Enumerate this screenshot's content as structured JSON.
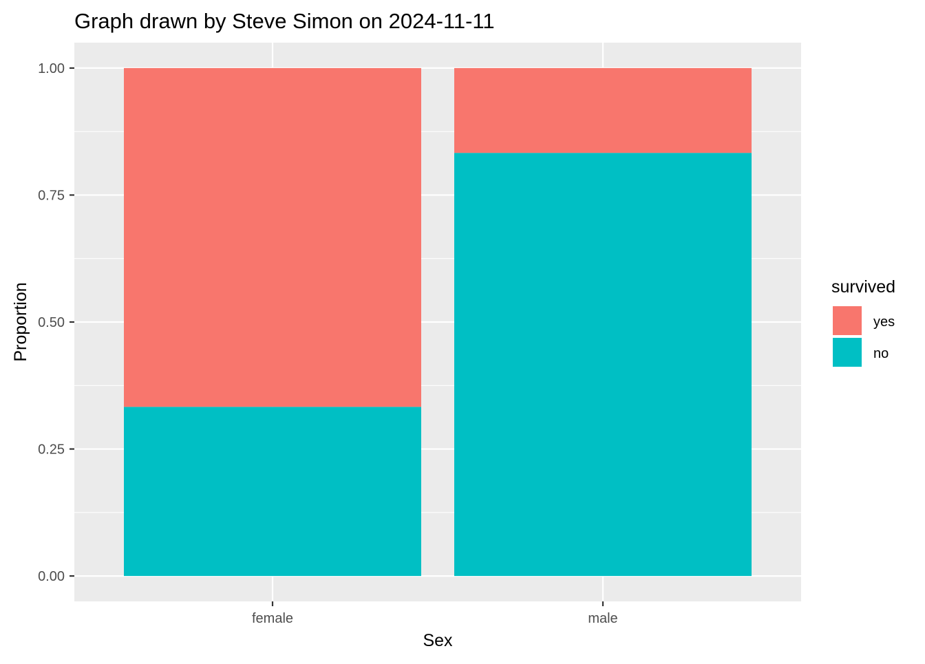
{
  "chart_data": {
    "type": "bar",
    "stacked": true,
    "title": "Graph drawn by Steve Simon on 2024-11-11",
    "xlabel": "Sex",
    "ylabel": "Proportion",
    "categories": [
      "female",
      "male"
    ],
    "series": [
      {
        "name": "no",
        "values": [
          0.333,
          0.833
        ],
        "color": "#00BFC4"
      },
      {
        "name": "yes",
        "values": [
          0.667,
          0.167
        ],
        "color": "#F8766D"
      }
    ],
    "ylim": [
      -0.05,
      1.05
    ],
    "y_ticks": [
      0.0,
      0.25,
      0.5,
      0.75,
      1.0
    ],
    "y_tick_labels": [
      "0.00",
      "0.25",
      "0.50",
      "0.75",
      "1.00"
    ],
    "grid": true,
    "legend": {
      "title": "survived",
      "placement": "right",
      "entries": [
        {
          "label": "yes",
          "color": "#F8766D"
        },
        {
          "label": "no",
          "color": "#00BFC4"
        }
      ]
    },
    "panel_color": "#EBEBEB",
    "grid_color": "#FFFFFF"
  }
}
